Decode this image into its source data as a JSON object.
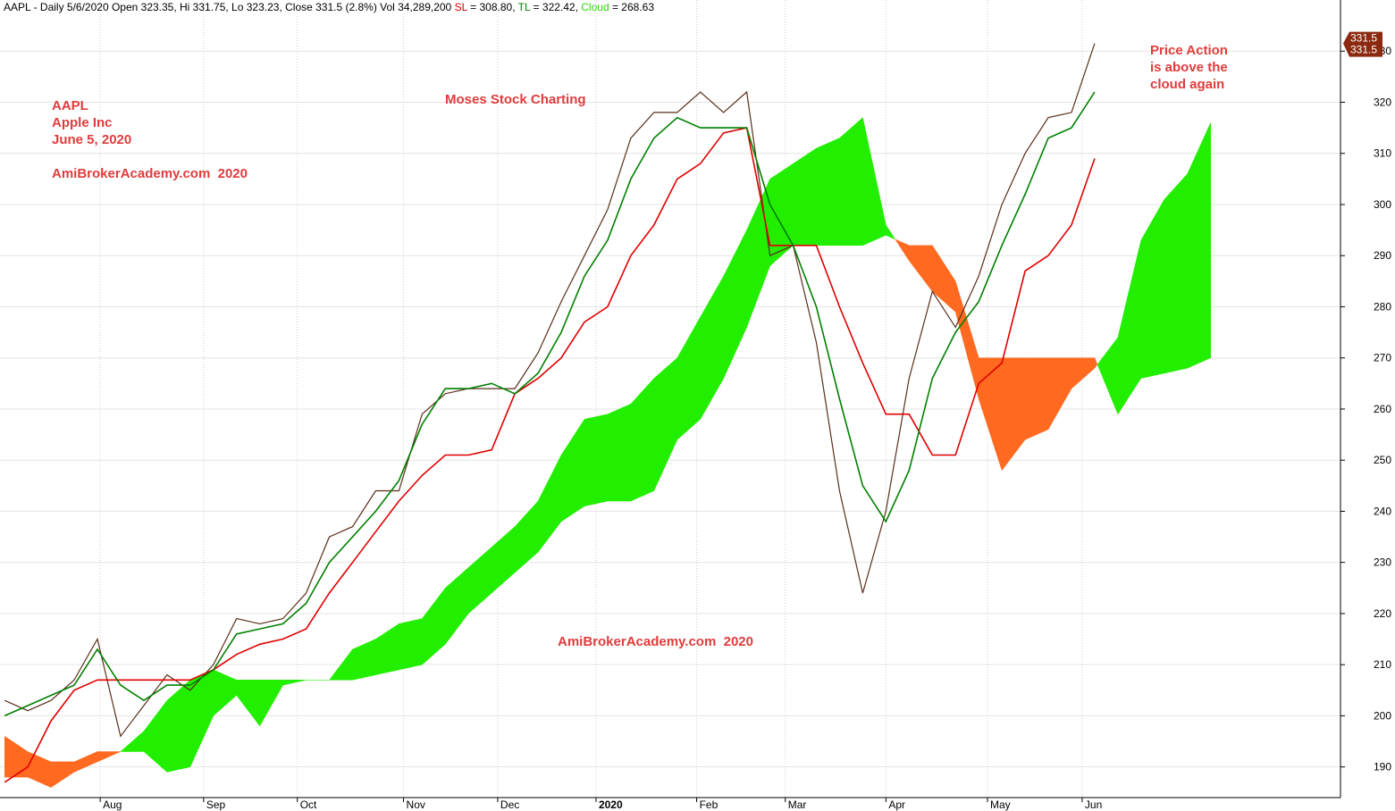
{
  "chart_data": {
    "type": "ichimoku",
    "header_parts": [
      {
        "text": "AAPL - Daily 5/6/2020 Open 323.35, Hi 331.75, Lo 323.23, Close 331.5 (2.8%) Vol 34,289,200 ",
        "color": "#000000"
      },
      {
        "text": "SL",
        "color": "#e00000"
      },
      {
        "text": " = 308.80, ",
        "color": "#000000"
      },
      {
        "text": "TL",
        "color": "#008000"
      },
      {
        "text": " = 322.42, ",
        "color": "#000000"
      },
      {
        "text": "Cloud",
        "color": "#22dd00"
      },
      {
        "text": " = 268.63",
        "color": "#000000"
      }
    ],
    "annotations": [
      "AAPL",
      "Apple Inc",
      "June 5, 2020",
      "AmiBrokerAcademy.com  2020",
      "Moses Stock Charting",
      "AmiBrokerAcademy.com  2020",
      "Price Action",
      "is above the",
      "cloud again"
    ],
    "annotation_color": "#e03c3c",
    "last_price_label": [
      "331.5",
      "331.5"
    ],
    "last_price_color": "#8b2a10",
    "x": [
      0,
      5,
      10,
      15,
      20,
      25,
      30,
      35,
      40,
      45,
      50,
      55,
      60,
      65,
      70,
      75,
      80,
      85,
      90,
      95,
      100,
      105,
      110,
      115,
      120,
      125,
      130,
      135,
      140,
      145,
      150,
      155,
      160,
      165,
      170,
      175,
      180,
      185,
      190,
      195,
      200,
      205,
      210,
      215,
      220,
      225,
      230,
      235,
      240,
      245,
      250,
      255,
      260
    ],
    "xlim": [
      -1,
      288
    ],
    "xticks": [
      {
        "value": 20.6,
        "label": "Aug"
      },
      {
        "value": 42.9,
        "label": "Sep"
      },
      {
        "value": 63.1,
        "label": "Oct"
      },
      {
        "value": 86,
        "label": "Nov"
      },
      {
        "value": 106.3,
        "label": "Dec"
      },
      {
        "value": 127.5,
        "label": "2020"
      },
      {
        "value": 149.2,
        "label": "Feb"
      },
      {
        "value": 168.3,
        "label": "Mar"
      },
      {
        "value": 190,
        "label": "Apr"
      },
      {
        "value": 211.9,
        "label": "May"
      },
      {
        "value": 232.3,
        "label": "Jun"
      }
    ],
    "ylim": [
      184,
      340
    ],
    "yticks": [
      190,
      200,
      210,
      220,
      230,
      240,
      250,
      260,
      270,
      280,
      290,
      300,
      310,
      320,
      330
    ],
    "grid": true,
    "series": [
      {
        "name": "Close",
        "color": "#5a2e1a",
        "values": [
          203,
          201,
          203,
          207,
          215,
          196,
          202,
          208,
          205,
          210,
          219,
          218,
          219,
          224,
          235,
          237,
          244,
          244,
          259,
          263,
          264,
          264,
          264,
          271,
          281,
          290,
          299,
          313,
          318,
          318,
          322,
          318,
          322,
          290,
          292,
          273,
          244,
          224,
          240,
          266,
          283,
          276,
          286,
          300,
          310,
          317,
          318,
          331.5,
          null,
          null,
          null,
          null,
          null
        ]
      },
      {
        "name": "TL",
        "color": "#008000",
        "values": [
          200,
          202,
          204,
          206,
          213,
          206,
          203,
          206,
          206,
          209,
          216,
          217,
          218,
          222,
          230,
          235,
          240,
          246,
          257,
          264,
          264,
          265,
          263,
          267,
          275,
          286,
          293,
          305,
          313,
          317,
          315,
          315,
          315,
          300,
          292,
          280,
          262,
          245,
          238,
          248,
          266,
          275,
          281,
          292,
          302,
          313,
          315,
          322,
          null,
          null,
          null,
          null,
          null
        ]
      },
      {
        "name": "SL",
        "color": "#e00000",
        "values": [
          187,
          190,
          199,
          205,
          207,
          207,
          207,
          207,
          207,
          209,
          212,
          214,
          215,
          217,
          224,
          230,
          236,
          242,
          247,
          251,
          251,
          252,
          263,
          266,
          270,
          277,
          280,
          290,
          296,
          305,
          308,
          314,
          315,
          292,
          292,
          292,
          280,
          269,
          259,
          259,
          251,
          251,
          265,
          269,
          287,
          290,
          296,
          309,
          null,
          null,
          null,
          null,
          null
        ]
      },
      {
        "name": "Span A",
        "color": "#22ee00",
        "values": [
          188,
          188,
          186,
          189,
          191,
          193,
          197,
          203,
          207,
          209,
          207,
          207,
          207,
          207,
          207,
          213,
          215,
          218,
          219,
          225,
          229,
          233,
          237,
          242,
          251,
          258,
          259,
          261,
          266,
          270,
          278,
          286,
          295,
          305,
          308,
          311,
          313,
          317,
          296,
          289,
          283,
          279,
          262,
          248,
          254,
          256,
          264,
          268,
          274,
          293,
          301,
          306,
          316
        ]
      },
      {
        "name": "Span B",
        "color": "#ff6a20",
        "values": [
          196,
          193,
          191,
          191,
          193,
          193,
          193,
          189,
          190,
          200,
          204,
          198,
          206,
          207,
          207,
          207,
          208,
          209,
          210,
          214,
          220,
          224,
          228,
          232,
          238,
          241,
          242,
          242,
          244,
          254,
          258,
          266,
          276,
          288,
          292,
          292,
          292,
          292,
          294,
          292,
          292,
          285,
          270,
          270,
          270,
          270,
          270,
          270,
          259,
          266,
          267,
          268,
          270
        ]
      }
    ]
  }
}
